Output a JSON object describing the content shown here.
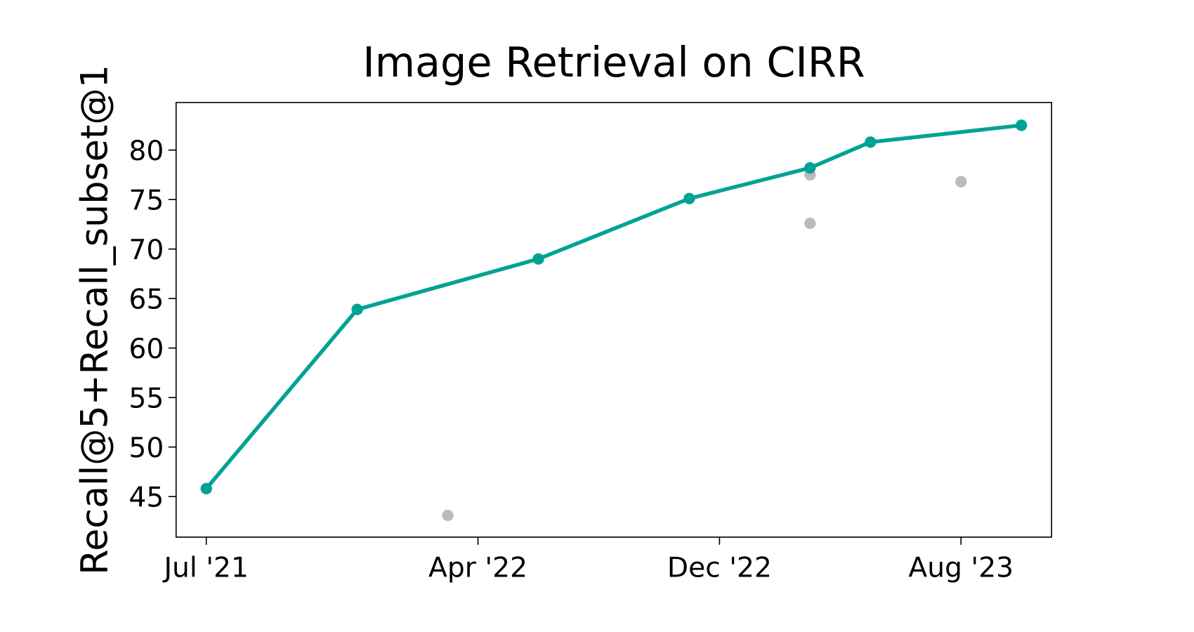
{
  "chart_data": {
    "type": "line",
    "title": "Image Retrieval on CIRR",
    "y_label": "Recall@5+Recall_subset@1",
    "xlim": [
      "2021-06",
      "2023-11"
    ],
    "xticks": [
      {
        "value": "2021-07",
        "label": "Jul '21"
      },
      {
        "value": "2022-04",
        "label": "Apr '22"
      },
      {
        "value": "2022-12",
        "label": "Dec '22"
      },
      {
        "value": "2023-08",
        "label": "Aug '23"
      }
    ],
    "ylim": [
      40.9,
      84.8
    ],
    "yticks": [
      45,
      50,
      55,
      60,
      65,
      70,
      75,
      80
    ],
    "grid": false,
    "series": [
      {
        "color": "#00a393",
        "connected": true,
        "x": [
          "2021-07",
          "2021-12",
          "2022-06",
          "2022-11",
          "2023-03",
          "2023-05",
          "2023-10"
        ],
        "values": [
          45.8,
          63.9,
          69.0,
          75.1,
          78.2,
          80.8,
          82.5
        ]
      },
      {
        "color": "#bbbbbb",
        "connected": false,
        "x": [
          "2022-03",
          "2023-03",
          "2023-03",
          "2023-08"
        ],
        "values": [
          43.1,
          77.5,
          72.6,
          76.8
        ]
      }
    ]
  }
}
